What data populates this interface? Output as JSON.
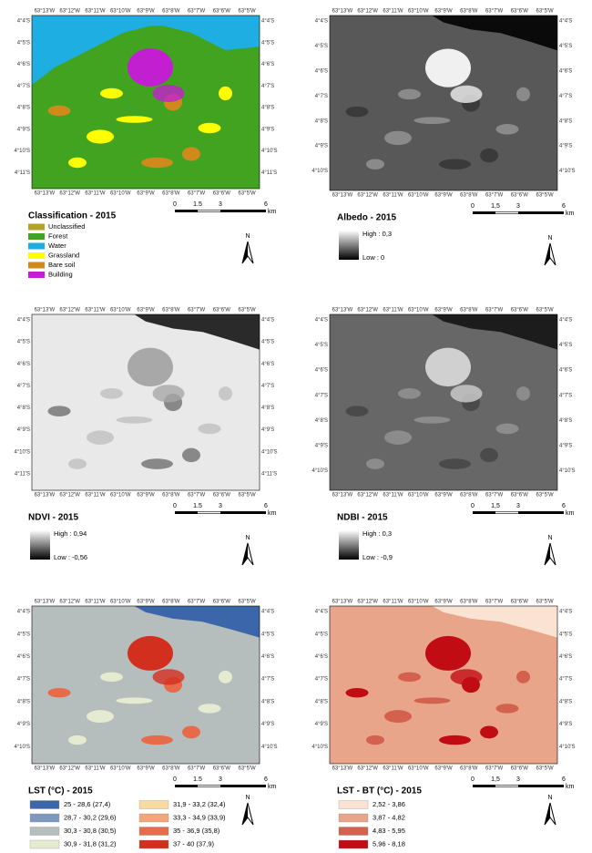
{
  "panels": [
    {
      "title": "Classification - 2015",
      "lon_labels": [
        "63°13'W",
        "63°12'W",
        "63°11'W",
        "63°10'W",
        "63°9'W",
        "63°8'W",
        "63°7'W",
        "63°6'W",
        "63°5'W"
      ],
      "lat_labels": [
        "4°4'S",
        "4°5'S",
        "4°6'S",
        "4°7'S",
        "4°8'S",
        "4°9'S",
        "4°10'S",
        "4°11'S"
      ],
      "scale": [
        "0",
        "1.5",
        "3",
        "6",
        "km"
      ],
      "north": "N",
      "legend": [
        {
          "label": "Unclassified",
          "color": "#b3a32b"
        },
        {
          "label": "Forest",
          "color": "#41a31f"
        },
        {
          "label": "Water",
          "color": "#1eaee2"
        },
        {
          "label": "Grassland",
          "color": "#ffff00"
        },
        {
          "label": "Bare soil",
          "color": "#d08a1c"
        },
        {
          "label": "Building",
          "color": "#c21fd0"
        }
      ]
    },
    {
      "title": "Albedo - 2015",
      "lon_labels": [
        "63°13'W",
        "63°12'W",
        "63°11'W",
        "63°10'W",
        "63°9'W",
        "63°8'W",
        "63°7'W",
        "63°6'W",
        "63°5'W"
      ],
      "lat_labels": [
        "4°4'S",
        "4°5'S",
        "4°6'S",
        "4°7'S",
        "4°8'S",
        "4°9'S",
        "4°10'S"
      ],
      "scale": [
        "0",
        "1,5",
        "3",
        "6",
        "km"
      ],
      "north": "N",
      "high": "High : 0,3",
      "low": "Low : 0"
    },
    {
      "title": "NDVI - 2015",
      "lon_labels": [
        "63°13'W",
        "63°12'W",
        "63°11'W",
        "63°10'W",
        "63°9'W",
        "63°8'W",
        "63°7'W",
        "63°6'W",
        "63°5'W"
      ],
      "lat_labels": [
        "4°4'S",
        "4°5'S",
        "4°6'S",
        "4°7'S",
        "4°8'S",
        "4°9'S",
        "4°10'S",
        "4°11'S"
      ],
      "scale": [
        "0",
        "1.5",
        "3",
        "6",
        "km"
      ],
      "north": "N",
      "high": "High : 0,94",
      "low": "Low : -0,56"
    },
    {
      "title": "NDBI - 2015",
      "lon_labels": [
        "63°13'W",
        "63°12'W",
        "63°11'W",
        "63°10'W",
        "63°9'W",
        "63°8'W",
        "63°7'W",
        "63°6'W",
        "63°5'W"
      ],
      "lat_labels": [
        "4°4'S",
        "4°5'S",
        "4°6'S",
        "4°7'S",
        "4°8'S",
        "4°9'S",
        "4°10'S"
      ],
      "scale": [
        "0",
        "1,5",
        "3",
        "6",
        "km"
      ],
      "north": "N",
      "high": "High : 0,3",
      "low": "Low : -0,9"
    },
    {
      "title": "LST (°C) - 2015",
      "lon_labels": [
        "63°13'W",
        "63°12'W",
        "63°11'W",
        "63°10'W",
        "63°9'W",
        "63°8'W",
        "63°7'W",
        "63°6'W",
        "63°5'W"
      ],
      "lat_labels": [
        "4°4'S",
        "4°5'S",
        "4°6'S",
        "4°7'S",
        "4°8'S",
        "4°9'S",
        "4°10'S"
      ],
      "scale": [
        "0",
        "1.5",
        "3",
        "6",
        "km"
      ],
      "north": "N",
      "legend": [
        {
          "label": "25 - 28,6 (27,4)",
          "color": "#3c66aa"
        },
        {
          "label": "28,7 - 30,2 (29,6)",
          "color": "#7f99be"
        },
        {
          "label": "30,3 - 30,8 (30,5)",
          "color": "#b5bebc"
        },
        {
          "label": "30,9 - 31,8 (31,2)",
          "color": "#e5ebd0"
        },
        {
          "label": "31,9 - 33,2 (32,4)",
          "color": "#f8dba0"
        },
        {
          "label": "33,3 - 34,9 (33,9)",
          "color": "#f3a67b"
        },
        {
          "label": "35 - 36,9 (35,8)",
          "color": "#e76b4a"
        },
        {
          "label": "37 - 40 (37,9)",
          "color": "#d32f1f"
        }
      ]
    },
    {
      "title": "LST - BT (°C) - 2015",
      "lon_labels": [
        "63°13'W",
        "63°12'W",
        "63°11'W",
        "63°10'W",
        "63°9'W",
        "63°8'W",
        "63°7'W",
        "63°6'W",
        "63°5'W"
      ],
      "lat_labels": [
        "4°4'S",
        "4°5'S",
        "4°6'S",
        "4°7'S",
        "4°8'S",
        "4°9'S",
        "4°10'S"
      ],
      "scale": [
        "0",
        "1,5",
        "3",
        "6",
        "km"
      ],
      "north": "N",
      "legend": [
        {
          "label": "2,52 - 3,86",
          "color": "#fbe3d3"
        },
        {
          "label": "3,87 - 4,82",
          "color": "#e8a58a"
        },
        {
          "label": "4,83 - 5,95",
          "color": "#d4604e"
        },
        {
          "label": "5,96 - 8,18",
          "color": "#c20c14"
        }
      ]
    }
  ]
}
